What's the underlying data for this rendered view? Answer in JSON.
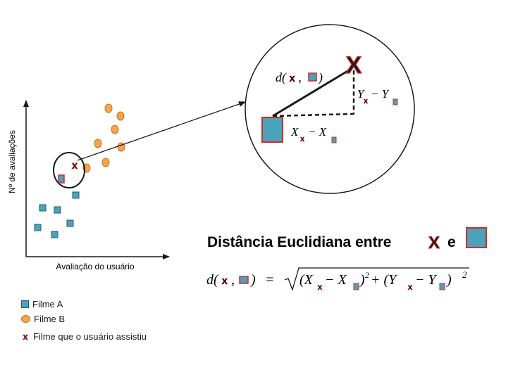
{
  "axes": {
    "xlabel": "Avaliação do usuário",
    "ylabel": "Nº de avaliações"
  },
  "colors": {
    "film_a_fill": "#4aa3b8",
    "film_a_stroke": "#1f5e6e",
    "film_b_fill": "#f5a54d",
    "film_b_stroke": "#c6731d",
    "highlight": "#d42a2a"
  },
  "plot": {
    "marker_x_glyph": "x"
  },
  "zoom": {
    "distance_label": "d(",
    "distance_sep": ",",
    "distance_close": ")",
    "dy_base": "Y",
    "dy_minus": "− Y",
    "dx_base": "X",
    "dx_minus": "− X",
    "big_x_glyph": "X"
  },
  "formula": {
    "title": "Distância Euclidiana entre",
    "title_and": "e",
    "lhs_open": "d(",
    "lhs_sep": ",",
    "lhs_close": ")",
    "equals": "=",
    "expr_open": "(X",
    "expr_minus1": "− X",
    "expr_close1": ")",
    "expr_sq1": "2",
    "expr_plus": "+ (Y",
    "expr_minus2": "− Y",
    "expr_close2": ")",
    "expr_sq2": "2"
  },
  "legend": {
    "film_a": "Filme A",
    "film_b": "Filme B",
    "watched": "Filme que o usuário assistiu",
    "x_glyph": "x"
  }
}
